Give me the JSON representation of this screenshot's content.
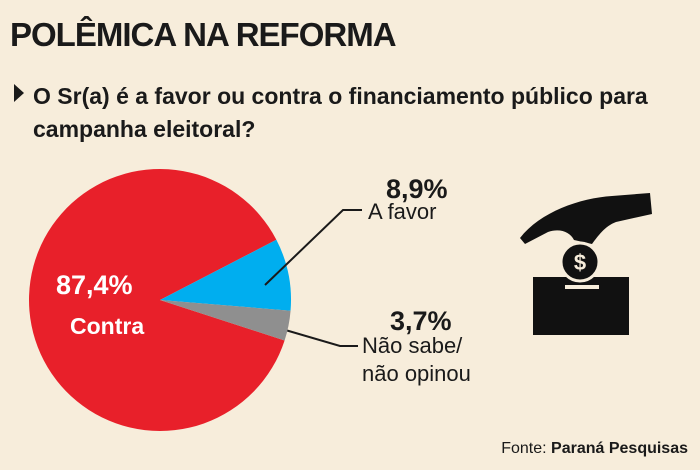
{
  "chart_data": {
    "type": "pie",
    "title": "POLÊMICA NA REFORMA",
    "subtitle": "O Sr(a) é a favor ou contra o financiamento público para campanha eleitoral?",
    "categories": [
      "Contra",
      "A favor",
      "Não sabe/ não opinou"
    ],
    "values": [
      87.4,
      8.9,
      3.7
    ],
    "value_labels": [
      "87,4%",
      "8,9%",
      "3,7%"
    ],
    "colors": [
      "#e8202a",
      "#00aeef",
      "#8f8f8f"
    ],
    "source_label": "Fonte:",
    "source": "Paraná Pesquisas"
  }
}
